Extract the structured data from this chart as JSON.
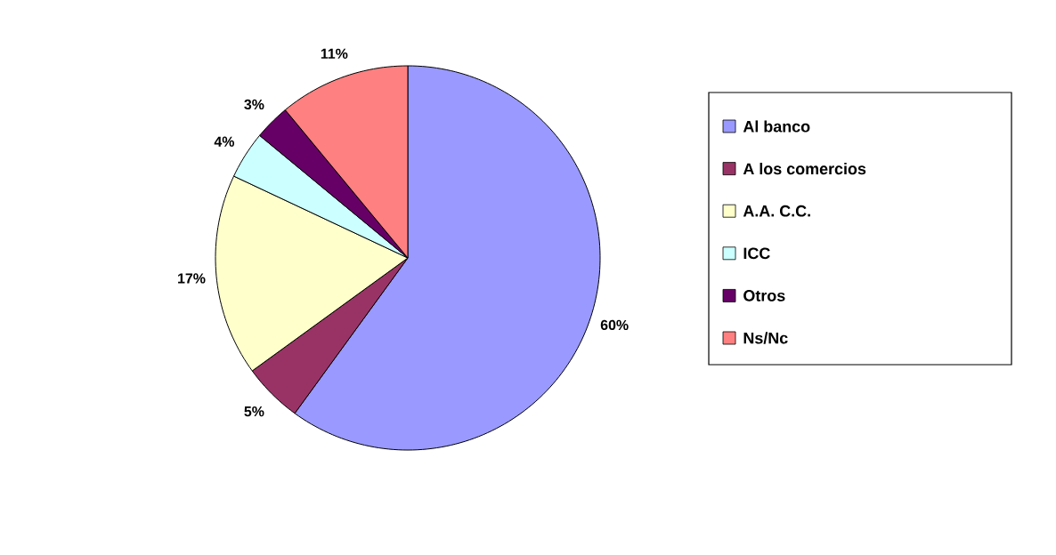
{
  "chart_data": {
    "type": "pie",
    "categories": [
      "Al banco",
      "A los comercios",
      "A.A. C.C.",
      "ICC",
      "Otros",
      "Ns/Nc"
    ],
    "values": [
      60,
      5,
      17,
      4,
      3,
      11
    ],
    "colors": [
      "#9999ff",
      "#993366",
      "#ffffcc",
      "#ccffff",
      "#660066",
      "#ff8080"
    ],
    "value_labels": [
      "60%",
      "5%",
      "17%",
      "4%",
      "3%",
      "11%"
    ],
    "legend": "right"
  }
}
